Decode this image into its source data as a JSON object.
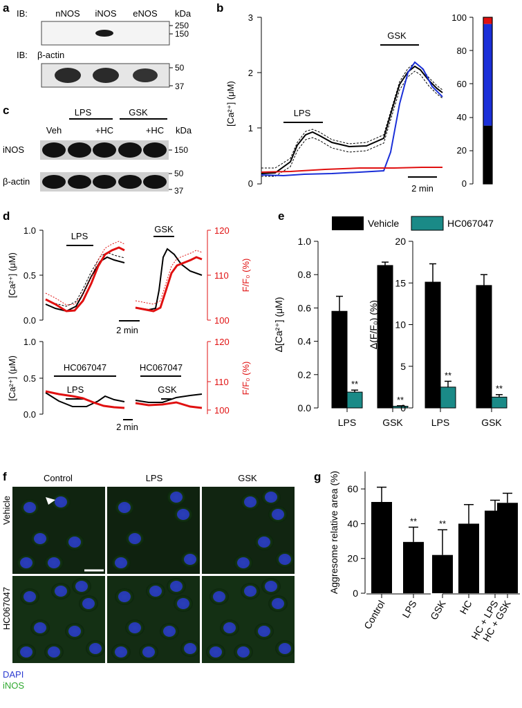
{
  "panel_labels": {
    "a": "a",
    "b": "b",
    "c": "c",
    "d": "d",
    "e": "e",
    "f": "f",
    "g": "g"
  },
  "colors": {
    "black": "#000000",
    "blue": "#1a2fd8",
    "red": "#e01010",
    "teal": "#1a8a87",
    "green": "#3fbf3f",
    "dapi": "#2a3ad0"
  },
  "panel_a": {
    "ib_label": "IB:",
    "lanes": [
      "nNOS",
      "iNOS",
      "eNOS"
    ],
    "kda": "kDa",
    "top_markers": [
      "250",
      "150"
    ],
    "actin_label": "β-actin",
    "bottom_markers": [
      "50",
      "37"
    ]
  },
  "panel_c": {
    "groups": [
      "LPS",
      "GSK"
    ],
    "lanes": [
      "Veh",
      "+HC",
      "+HC"
    ],
    "kda": "kDa",
    "rows": [
      "iNOS",
      "β-actin"
    ],
    "markers_top": [
      "150"
    ],
    "markers_bottom": [
      "50",
      "37"
    ]
  },
  "panel_b": {
    "ylabel": "[Ca²⁺] (μM)",
    "yticks": [
      "0",
      "1",
      "2",
      "3"
    ],
    "lps": "LPS",
    "gsk": "GSK",
    "scale": "2 min",
    "stack_ticks": [
      "0",
      "20",
      "40",
      "60",
      "80",
      "100"
    ],
    "stack": {
      "black": 35,
      "blue": 61,
      "red": 4
    }
  },
  "panel_d": {
    "ylabel_left": "[Ca²⁺] (μM)",
    "ylabel_right": "F/F₀ (%)",
    "left_ticks": [
      "0.0",
      "0.5",
      "1.0"
    ],
    "right_ticks": [
      "100",
      "110",
      "120"
    ],
    "top_lps": "LPS",
    "top_gsk": "GSK",
    "bot_hc1": "HC067047",
    "bot_hc2": "HC067047",
    "bot_lps": "LPS",
    "bot_gsk": "GSK",
    "scale": "2 min"
  },
  "panel_e": {
    "legend": [
      "Vehicle",
      "HC067047"
    ],
    "sig": "**"
  },
  "panel_f": {
    "cols": [
      "Control",
      "LPS",
      "GSK"
    ],
    "rows": [
      "Vehicle",
      "HC067047"
    ],
    "dapi": "DAPI",
    "inos": "iNOS"
  },
  "chart_data": [
    {
      "id": "e-left",
      "type": "bar",
      "ylabel": "Δ[Ca²⁺] (μM)",
      "categories": [
        "LPS",
        "GSK"
      ],
      "series": [
        {
          "name": "Vehicle",
          "values": [
            0.58,
            0.855
          ],
          "errors": [
            0.09,
            0.02
          ]
        },
        {
          "name": "HC067047",
          "values": [
            0.095,
            0.01
          ],
          "errors": [
            0.012,
            0.003
          ]
        }
      ],
      "ylim": [
        0,
        1.0
      ],
      "yticks": [
        "0.0",
        "0.2",
        "0.4",
        "0.6",
        "0.8",
        "1.0"
      ]
    },
    {
      "id": "e-right",
      "type": "bar",
      "ylabel": "Δ(F/F₀) (%)",
      "categories": [
        "LPS",
        "GSK"
      ],
      "series": [
        {
          "name": "Vehicle",
          "values": [
            15.1,
            14.7
          ],
          "errors": [
            2.2,
            1.3
          ]
        },
        {
          "name": "HC067047",
          "values": [
            2.5,
            1.3
          ],
          "errors": [
            0.7,
            0.3
          ]
        }
      ],
      "ylim": [
        0,
        20
      ],
      "yticks": [
        "0",
        "5",
        "10",
        "15",
        "20"
      ]
    },
    {
      "id": "g",
      "type": "bar",
      "ylabel": "Aggresome relative area (%)",
      "categories": [
        "Control",
        "LPS",
        "GSK",
        "HC",
        "HC + LPS",
        "HC + GSK"
      ],
      "values": [
        52.5,
        29.5,
        22,
        40,
        47.5,
        52
      ],
      "errors": [
        8.5,
        8.5,
        14.5,
        11,
        6,
        5.5
      ],
      "sig": [
        "",
        "**",
        "**",
        "",
        "",
        ""
      ],
      "ylim": [
        0,
        70
      ],
      "yticks": [
        "0",
        "20",
        "40",
        "60"
      ]
    }
  ]
}
